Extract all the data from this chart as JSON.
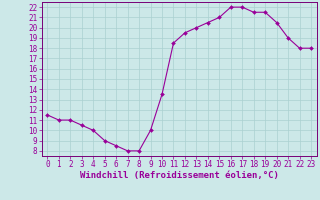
{
  "x": [
    0,
    1,
    2,
    3,
    4,
    5,
    6,
    7,
    8,
    9,
    10,
    11,
    12,
    13,
    14,
    15,
    16,
    17,
    18,
    19,
    20,
    21,
    22,
    23
  ],
  "y": [
    11.5,
    11.0,
    11.0,
    10.5,
    10.0,
    9.0,
    8.5,
    8.0,
    8.0,
    10.0,
    13.5,
    18.5,
    19.5,
    20.0,
    20.5,
    21.0,
    22.0,
    22.0,
    21.5,
    21.5,
    20.5,
    19.0,
    18.0,
    18.0
  ],
  "line_color": "#990099",
  "marker": "D",
  "marker_size": 2.0,
  "bg_color": "#cce8e8",
  "grid_color": "#aad0d0",
  "xlabel": "Windchill (Refroidissement éolien,°C)",
  "xlabel_fontsize": 6.5,
  "xlim": [
    -0.5,
    23.5
  ],
  "ylim": [
    7.5,
    22.5
  ],
  "xticks": [
    0,
    1,
    2,
    3,
    4,
    5,
    6,
    7,
    8,
    9,
    10,
    11,
    12,
    13,
    14,
    15,
    16,
    17,
    18,
    19,
    20,
    21,
    22,
    23
  ],
  "yticks": [
    8,
    9,
    10,
    11,
    12,
    13,
    14,
    15,
    16,
    17,
    18,
    19,
    20,
    21,
    22
  ],
  "tick_fontsize": 5.5,
  "tick_color": "#990099",
  "spine_color": "#770077",
  "linewidth": 0.8
}
